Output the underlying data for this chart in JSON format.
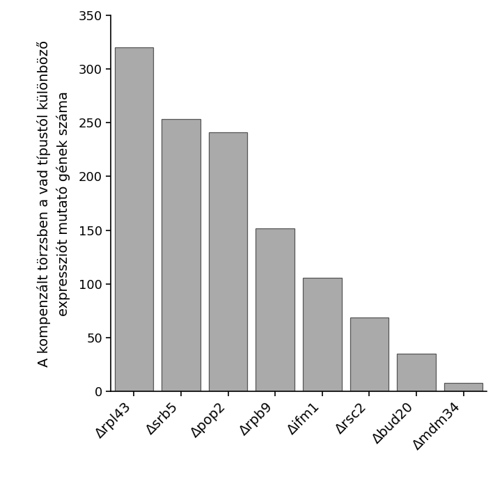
{
  "categories": [
    "Δrpl43",
    "Δsrb5",
    "Δpop2",
    "Δrpb9",
    "Δifm1",
    "Δrsc2",
    "Δbud20",
    "Δmdm34"
  ],
  "values": [
    320,
    253,
    241,
    152,
    106,
    69,
    35,
    8
  ],
  "bar_color": "#aaaaaa",
  "bar_edge_color": "#555555",
  "ylabel_line1": "A kompenzált törzsben a vad típustól különböző",
  "ylabel_line2": "expressziót mutató gének száma",
  "ylim": [
    0,
    350
  ],
  "yticks": [
    0,
    50,
    100,
    150,
    200,
    250,
    300,
    350
  ],
  "background_color": "#ffffff",
  "bar_width": 0.82,
  "ylabel_fontsize": 14,
  "tick_fontsize": 13,
  "xtick_fontsize": 14
}
